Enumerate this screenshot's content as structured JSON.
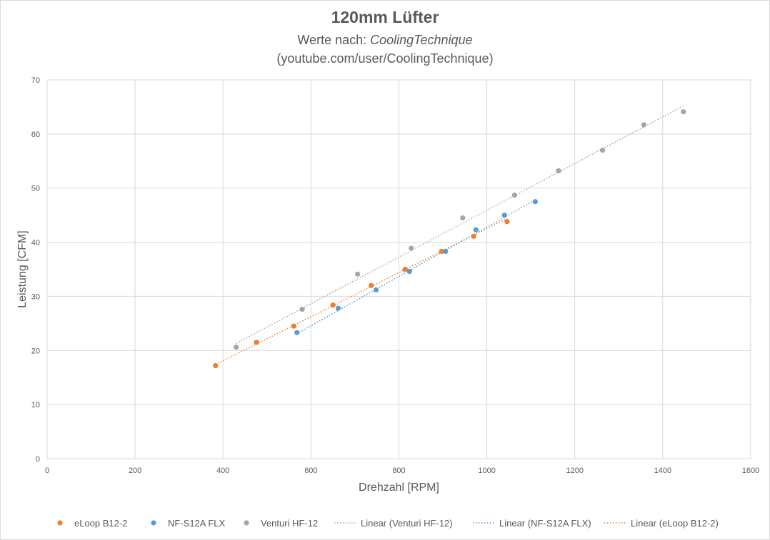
{
  "chart_data": {
    "type": "scatter",
    "title": "120mm Lüfter",
    "subtitle_prefix": "Werte nach:",
    "subtitle_name": "CoolingTechnique",
    "subtitle2": "(youtube.com/user/CoolingTechnique)",
    "xlabel": "Drehzahl [RPM]",
    "ylabel": "Leistung [CFM]",
    "xlim": [
      0,
      1600
    ],
    "ylim": [
      0,
      70
    ],
    "x_ticks": [
      0,
      200,
      400,
      600,
      800,
      1000,
      1200,
      1400,
      1600
    ],
    "y_ticks": [
      0,
      10,
      20,
      30,
      40,
      50,
      60,
      70
    ],
    "grid": true,
    "legend_position": "bottom",
    "series": [
      {
        "name": "eLoop B12-2",
        "color": "#ed7d31",
        "points": [
          [
            383,
            17.2
          ],
          [
            476,
            21.5
          ],
          [
            561,
            24.5
          ],
          [
            650,
            28.4
          ],
          [
            737,
            32.0
          ],
          [
            814,
            35.0
          ],
          [
            897,
            38.3
          ],
          [
            970,
            41.1
          ],
          [
            1046,
            43.8
          ]
        ]
      },
      {
        "name": "NF-S12A FLX",
        "color": "#5b9bd5",
        "points": [
          [
            568,
            23.3
          ],
          [
            662,
            27.8
          ],
          [
            748,
            31.2
          ],
          [
            824,
            34.6
          ],
          [
            906,
            38.3
          ],
          [
            975,
            42.3
          ],
          [
            1040,
            45.0
          ],
          [
            1110,
            47.5
          ]
        ]
      },
      {
        "name": "Venturi HF-12",
        "color": "#a5a5a5",
        "points": [
          [
            430,
            20.6
          ],
          [
            580,
            27.6
          ],
          [
            706,
            34.1
          ],
          [
            828,
            38.9
          ],
          [
            945,
            44.5
          ],
          [
            1063,
            48.7
          ],
          [
            1163,
            53.2
          ],
          [
            1263,
            57.0
          ],
          [
            1357,
            61.7
          ],
          [
            1447,
            64.1
          ]
        ]
      }
    ],
    "trendlines": [
      {
        "label": "Linear (Venturi HF-12)",
        "series": "Venturi HF-12",
        "color": "#a5a5a5",
        "from": [
          430,
          21.3
        ],
        "to": [
          1447,
          65.2
        ]
      },
      {
        "label": "Linear (NF-S12A FLX)",
        "series": "NF-S12A FLX",
        "color": "#5b9bd5",
        "from": [
          568,
          23.1
        ],
        "to": [
          1110,
          47.8
        ]
      },
      {
        "label": "Linear (eLoop B12-2)",
        "series": "eLoop B12-2",
        "color": "#ed7d31",
        "from": [
          383,
          17.4
        ],
        "to": [
          1046,
          44.4
        ]
      }
    ]
  }
}
